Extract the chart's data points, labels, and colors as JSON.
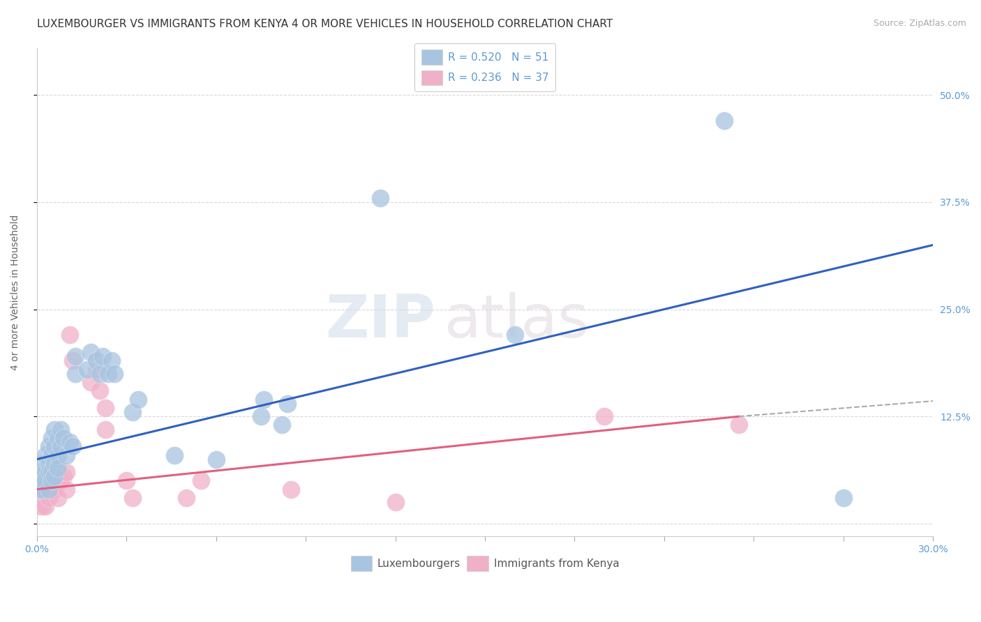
{
  "title": "LUXEMBOURGER VS IMMIGRANTS FROM KENYA 4 OR MORE VEHICLES IN HOUSEHOLD CORRELATION CHART",
  "source_text": "Source: ZipAtlas.com",
  "xlabel": "",
  "ylabel": "4 or more Vehicles in Household",
  "xlim": [
    0.0,
    0.3
  ],
  "ylim": [
    -0.015,
    0.555
  ],
  "xticks": [
    0.0,
    0.03,
    0.06,
    0.09,
    0.12,
    0.15,
    0.18,
    0.21,
    0.24,
    0.27,
    0.3
  ],
  "xtick_labels": [
    "0.0%",
    "",
    "",
    "",
    "",
    "",
    "",
    "",
    "",
    "",
    "30.0%"
  ],
  "ytick_positions": [
    0.0,
    0.125,
    0.25,
    0.375,
    0.5
  ],
  "ytick_labels": [
    "",
    "12.5%",
    "25.0%",
    "37.5%",
    "50.0%"
  ],
  "legend_blue_label": "R = 0.520   N = 51",
  "legend_pink_label": "R = 0.236   N = 37",
  "blue_color": "#a8c4e0",
  "pink_color": "#f0b0c8",
  "blue_line_color": "#3060c0",
  "pink_line_color": "#e06080",
  "blue_scatter": [
    [
      0.001,
      0.04
    ],
    [
      0.001,
      0.06
    ],
    [
      0.002,
      0.05
    ],
    [
      0.002,
      0.07
    ],
    [
      0.002,
      0.04
    ],
    [
      0.003,
      0.06
    ],
    [
      0.003,
      0.08
    ],
    [
      0.003,
      0.05
    ],
    [
      0.004,
      0.07
    ],
    [
      0.004,
      0.09
    ],
    [
      0.004,
      0.06
    ],
    [
      0.004,
      0.04
    ],
    [
      0.005,
      0.08
    ],
    [
      0.005,
      0.1
    ],
    [
      0.005,
      0.06
    ],
    [
      0.005,
      0.05
    ],
    [
      0.006,
      0.09
    ],
    [
      0.006,
      0.07
    ],
    [
      0.006,
      0.11
    ],
    [
      0.006,
      0.055
    ],
    [
      0.007,
      0.1
    ],
    [
      0.007,
      0.08
    ],
    [
      0.007,
      0.065
    ],
    [
      0.008,
      0.09
    ],
    [
      0.008,
      0.11
    ],
    [
      0.009,
      0.1
    ],
    [
      0.01,
      0.08
    ],
    [
      0.011,
      0.095
    ],
    [
      0.012,
      0.09
    ],
    [
      0.013,
      0.175
    ],
    [
      0.013,
      0.195
    ],
    [
      0.017,
      0.18
    ],
    [
      0.018,
      0.2
    ],
    [
      0.02,
      0.19
    ],
    [
      0.021,
      0.175
    ],
    [
      0.022,
      0.195
    ],
    [
      0.024,
      0.175
    ],
    [
      0.025,
      0.19
    ],
    [
      0.026,
      0.175
    ],
    [
      0.032,
      0.13
    ],
    [
      0.034,
      0.145
    ],
    [
      0.046,
      0.08
    ],
    [
      0.06,
      0.075
    ],
    [
      0.075,
      0.125
    ],
    [
      0.076,
      0.145
    ],
    [
      0.082,
      0.115
    ],
    [
      0.084,
      0.14
    ],
    [
      0.115,
      0.38
    ],
    [
      0.16,
      0.22
    ],
    [
      0.23,
      0.47
    ],
    [
      0.27,
      0.03
    ]
  ],
  "pink_scatter": [
    [
      0.001,
      0.02
    ],
    [
      0.001,
      0.03
    ],
    [
      0.001,
      0.04
    ],
    [
      0.002,
      0.03
    ],
    [
      0.002,
      0.05
    ],
    [
      0.002,
      0.02
    ],
    [
      0.003,
      0.04
    ],
    [
      0.003,
      0.02
    ],
    [
      0.003,
      0.06
    ],
    [
      0.004,
      0.05
    ],
    [
      0.004,
      0.03
    ],
    [
      0.004,
      0.07
    ],
    [
      0.005,
      0.04
    ],
    [
      0.005,
      0.06
    ],
    [
      0.006,
      0.05
    ],
    [
      0.006,
      0.04
    ],
    [
      0.007,
      0.06
    ],
    [
      0.007,
      0.03
    ],
    [
      0.008,
      0.05
    ],
    [
      0.009,
      0.055
    ],
    [
      0.01,
      0.04
    ],
    [
      0.01,
      0.06
    ],
    [
      0.011,
      0.22
    ],
    [
      0.012,
      0.19
    ],
    [
      0.018,
      0.165
    ],
    [
      0.02,
      0.18
    ],
    [
      0.021,
      0.155
    ],
    [
      0.023,
      0.11
    ],
    [
      0.023,
      0.135
    ],
    [
      0.03,
      0.05
    ],
    [
      0.032,
      0.03
    ],
    [
      0.05,
      0.03
    ],
    [
      0.055,
      0.05
    ],
    [
      0.085,
      0.04
    ],
    [
      0.12,
      0.025
    ],
    [
      0.19,
      0.125
    ],
    [
      0.235,
      0.115
    ]
  ],
  "blue_trendline": [
    [
      0.0,
      0.075
    ],
    [
      0.3,
      0.325
    ]
  ],
  "pink_trendline_solid": [
    [
      0.0,
      0.04
    ],
    [
      0.235,
      0.125
    ]
  ],
  "pink_trendline_dash": [
    [
      0.235,
      0.125
    ],
    [
      0.3,
      0.143
    ]
  ],
  "background_color": "#ffffff",
  "grid_color": "#d8d8d8",
  "watermark_text_zip": "ZIP",
  "watermark_text_atlas": "atlas",
  "title_fontsize": 11,
  "axis_label_fontsize": 10,
  "tick_fontsize": 10,
  "legend_fontsize": 11
}
